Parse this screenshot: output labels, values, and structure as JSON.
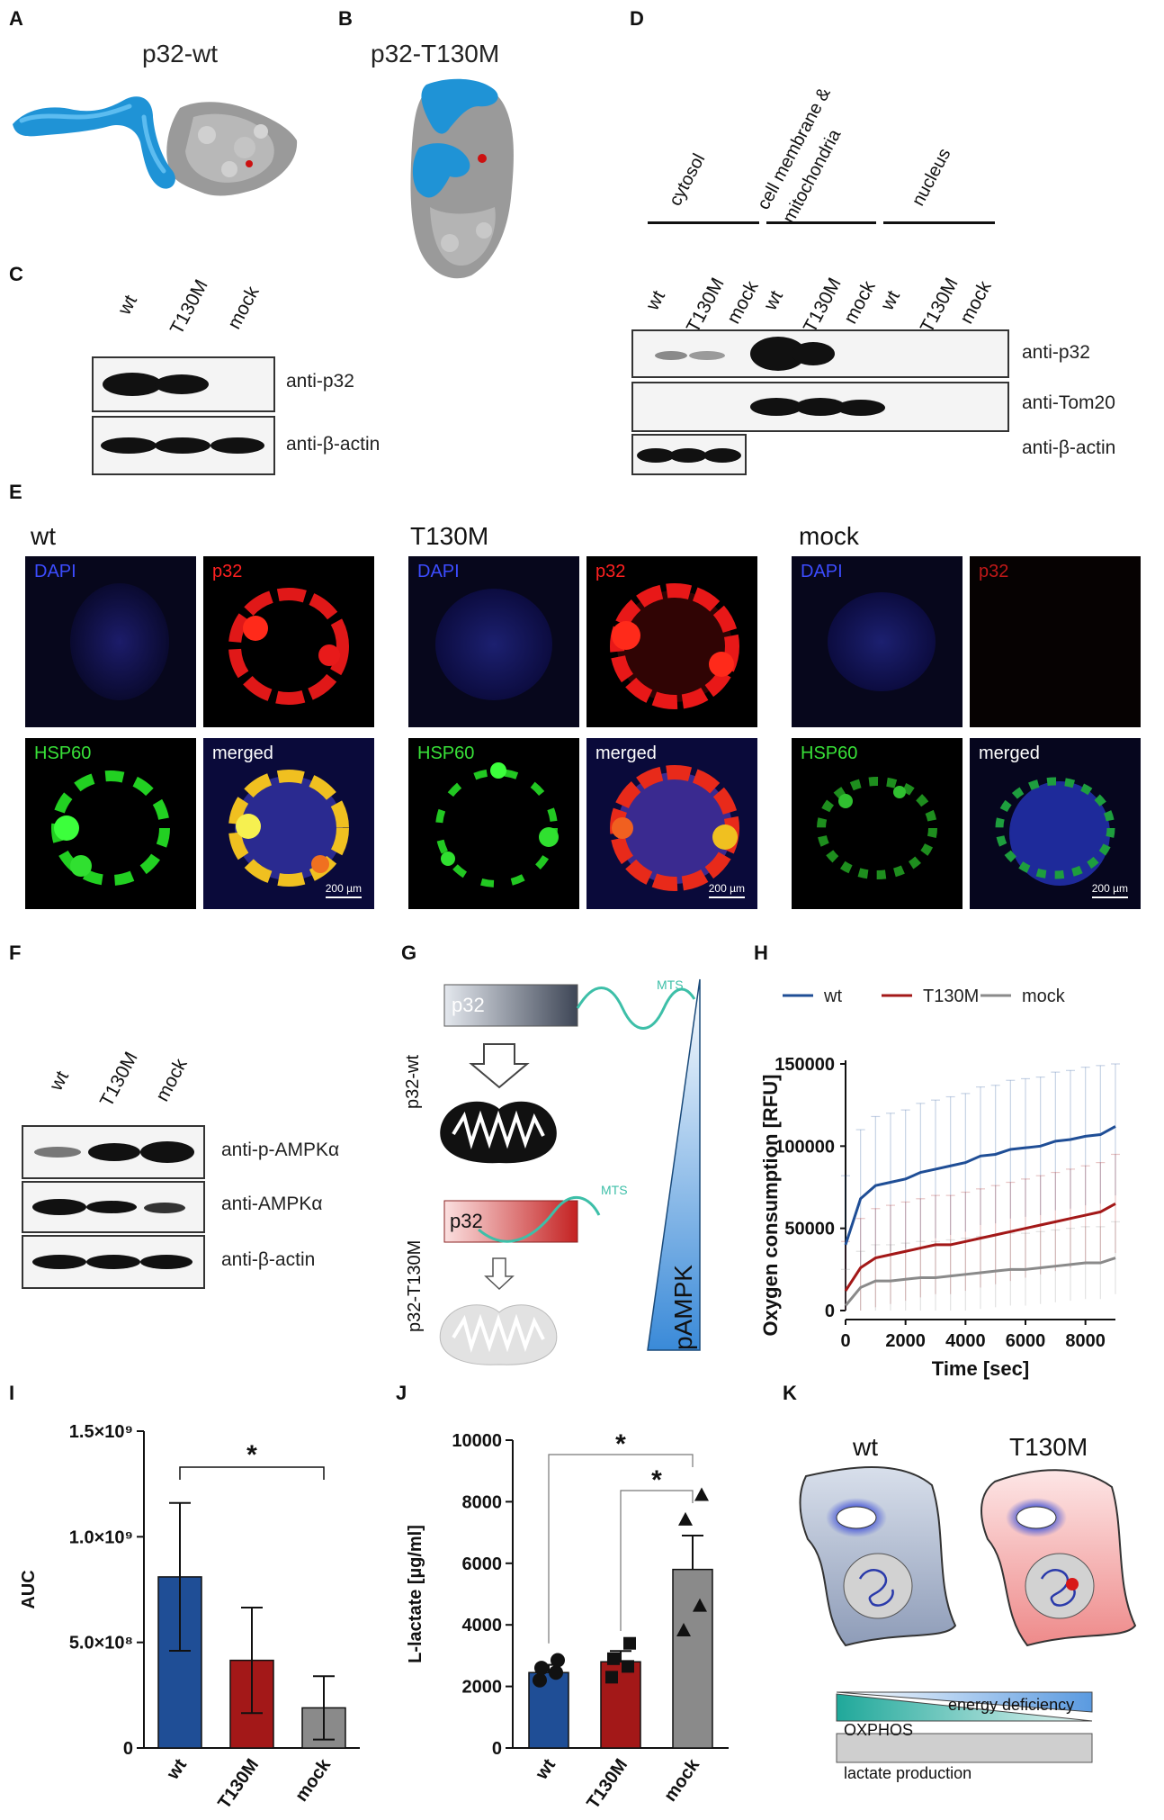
{
  "panels": {
    "A": "A",
    "B": "B",
    "C": "C",
    "D": "D",
    "E": "E",
    "F": "F",
    "G": "G",
    "H": "H",
    "I": "I",
    "J": "J",
    "K": "K"
  },
  "A": {
    "title": "p32-wt"
  },
  "B": {
    "title": "p32-T130M"
  },
  "C": {
    "lanes": [
      "wt",
      "T130M",
      "mock"
    ],
    "blots": [
      "anti-p32",
      "anti-β-actin"
    ]
  },
  "D": {
    "fractions": [
      "cytosol",
      "cell membrane & mitochondria",
      "nucleus"
    ],
    "lanes": [
      "wt",
      "T130M",
      "mock",
      "wt",
      "T130M",
      "mock",
      "wt",
      "T130M",
      "mock"
    ],
    "blots": [
      "anti-p32",
      "anti-Tom20",
      "anti-β-actin"
    ]
  },
  "E": {
    "groups": [
      "wt",
      "T130M",
      "mock"
    ],
    "channels": [
      "DAPI",
      "p32",
      "HSP60",
      "merged"
    ],
    "scale": "200 µm"
  },
  "F": {
    "lanes": [
      "wt",
      "T130M",
      "mock"
    ],
    "blots": [
      "anti-p-AMPKα",
      "anti-AMPKα",
      "anti-β-actin"
    ]
  },
  "G": {
    "p32": "p32",
    "mts": "MTS",
    "wt_label": "p32-wt",
    "mut_label": "p32-T130M",
    "pampk": "pAMPK"
  },
  "K": {
    "wt": "wt",
    "mut": "T130M",
    "energy": "energy deficiency",
    "oxphos": "OXPHOS",
    "lactate": "lactate production"
  },
  "colors": {
    "wt": "#1f4e96",
    "t130m": "#a31818",
    "mock": "#8a8a8a",
    "blue": "#2f9bd8",
    "teal": "#3dbfa8"
  },
  "chart_data": [
    {
      "panel": "H",
      "type": "line",
      "ylabel": "Oxygen consumption [RFU]",
      "xlabel": "Time [sec]",
      "xlim": [
        0,
        9000
      ],
      "ylim": [
        0,
        150000
      ],
      "xticks": [
        "0",
        "2000",
        "4000",
        "6000",
        "8000"
      ],
      "yticks": [
        "0",
        "50000",
        "100000",
        "150000"
      ],
      "legend": "top",
      "x": [
        0,
        500,
        1000,
        1500,
        2000,
        2500,
        3000,
        3500,
        4000,
        4500,
        5000,
        5500,
        6000,
        6500,
        7000,
        7500,
        8000,
        8500,
        9000
      ],
      "series": [
        {
          "name": "wt",
          "values": [
            40000,
            68000,
            76000,
            78000,
            80000,
            84000,
            86000,
            88000,
            90000,
            94000,
            95000,
            98000,
            99000,
            100000,
            103000,
            104000,
            106000,
            107000,
            112000
          ]
        },
        {
          "name": "T130M",
          "values": [
            12000,
            26000,
            32000,
            34000,
            36000,
            38000,
            40000,
            40000,
            42000,
            44000,
            46000,
            48000,
            50000,
            52000,
            54000,
            56000,
            58000,
            60000,
            65000
          ]
        },
        {
          "name": "mock",
          "values": [
            3000,
            14000,
            18000,
            18000,
            19000,
            20000,
            20000,
            21000,
            22000,
            23000,
            24000,
            25000,
            25000,
            26000,
            27000,
            28000,
            29000,
            29000,
            32000
          ]
        }
      ]
    },
    {
      "panel": "I",
      "type": "bar",
      "ylabel": "AUC",
      "categories": [
        "wt",
        "T130M",
        "mock"
      ],
      "values": [
        810000000,
        415000000,
        190000000
      ],
      "errors": [
        350000000,
        250000000,
        150000000
      ],
      "ylim": [
        0,
        1500000000
      ],
      "yticks": [
        "0",
        "5.0×10⁸",
        "1.0×10⁹",
        "1.5×10⁹"
      ],
      "significance": "*"
    },
    {
      "panel": "J",
      "type": "bar",
      "ylabel": "L-lactate [µg/ml]",
      "categories": [
        "wt",
        "T130M",
        "mock"
      ],
      "values": [
        2450,
        2800,
        5800
      ],
      "errors": [
        250,
        350,
        1100
      ],
      "ylim": [
        0,
        10000
      ],
      "yticks": [
        "0",
        "2000",
        "4000",
        "6000",
        "8000",
        "10000"
      ],
      "points": [
        [
          2200,
          2450,
          2600,
          2850
        ],
        [
          2300,
          2650,
          2900,
          3400
        ],
        [
          3800,
          4600,
          7400,
          8200
        ]
      ],
      "significance": [
        "*",
        "*"
      ]
    }
  ]
}
